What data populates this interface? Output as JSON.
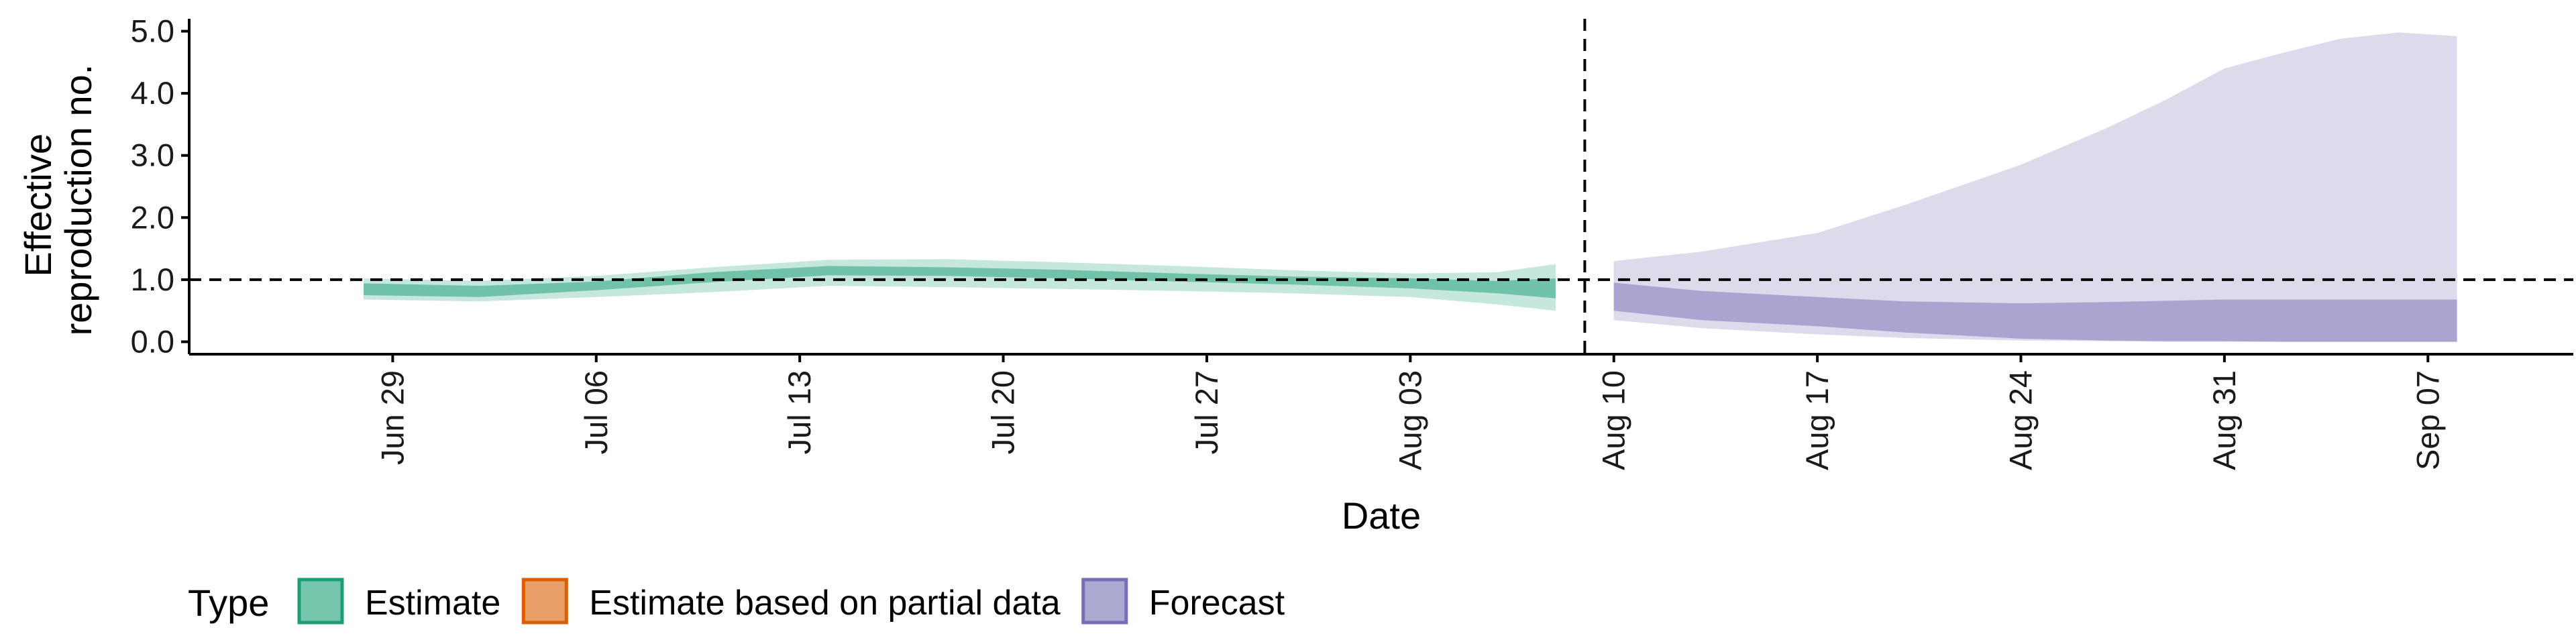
{
  "chart_data": {
    "type": "area",
    "ylabel_lines": [
      "Effective",
      "reproduction no."
    ],
    "xlabel": "Date",
    "ylim": [
      -0.2,
      5.2
    ],
    "yticks": [
      0.0,
      1.0,
      2.0,
      3.0,
      4.0,
      5.0
    ],
    "ytick_labels": [
      "0.0",
      "1.0",
      "2.0",
      "3.0",
      "4.0",
      "5.0"
    ],
    "xlim": [
      "2020-06-22",
      "2020-09-12"
    ],
    "xticks": [
      "2020-06-29",
      "2020-07-06",
      "2020-07-13",
      "2020-07-20",
      "2020-07-27",
      "2020-08-03",
      "2020-08-10",
      "2020-08-17",
      "2020-08-24",
      "2020-08-31",
      "2020-09-07"
    ],
    "xtick_labels": [
      "Jun 29",
      "Jul 06",
      "Jul 13",
      "Jul 20",
      "Jul 27",
      "Aug 03",
      "Aug 10",
      "Aug 17",
      "Aug 24",
      "Aug 31",
      "Sep 07"
    ],
    "reference_hline": 1.0,
    "divider_date": "2020-08-09",
    "series": [
      {
        "name": "Estimate",
        "color": "#1b9e77",
        "x": [
          "2020-06-28",
          "2020-07-02",
          "2020-07-06",
          "2020-07-10",
          "2020-07-14",
          "2020-07-18",
          "2020-07-22",
          "2020-07-26",
          "2020-07-30",
          "2020-08-03",
          "2020-08-06",
          "2020-08-08"
        ],
        "outer_lower": [
          0.68,
          0.65,
          0.72,
          0.8,
          0.9,
          0.88,
          0.85,
          0.82,
          0.78,
          0.72,
          0.6,
          0.5
        ],
        "outer_upper": [
          1.02,
          0.98,
          1.06,
          1.2,
          1.32,
          1.33,
          1.28,
          1.22,
          1.15,
          1.1,
          1.12,
          1.25
        ],
        "inner_lower": [
          0.75,
          0.72,
          0.83,
          0.96,
          1.07,
          1.06,
          1.02,
          0.97,
          0.92,
          0.86,
          0.78,
          0.7
        ],
        "inner_upper": [
          0.94,
          0.9,
          0.97,
          1.12,
          1.22,
          1.2,
          1.16,
          1.1,
          1.05,
          1.02,
          0.98,
          1.02
        ]
      },
      {
        "name": "Estimate based on partial data",
        "color": "#d95f02",
        "x": [],
        "outer_lower": [],
        "outer_upper": [],
        "inner_lower": [],
        "inner_upper": []
      },
      {
        "name": "Forecast",
        "color": "#7570b3",
        "x": [
          "2020-08-10",
          "2020-08-13",
          "2020-08-17",
          "2020-08-20",
          "2020-08-24",
          "2020-08-27",
          "2020-08-29",
          "2020-08-31",
          "2020-09-02",
          "2020-09-04",
          "2020-09-06",
          "2020-09-08"
        ],
        "outer_lower": [
          0.35,
          0.22,
          0.12,
          0.06,
          0.02,
          0.01,
          0.0,
          0.0,
          0.0,
          0.0,
          0.0,
          0.0
        ],
        "outer_upper": [
          1.3,
          1.45,
          1.75,
          2.2,
          2.85,
          3.45,
          3.9,
          4.4,
          4.65,
          4.88,
          4.98,
          4.92
        ],
        "inner_lower": [
          0.5,
          0.35,
          0.25,
          0.15,
          0.05,
          0.02,
          0.01,
          0.01,
          0.0,
          0.0,
          0.0,
          0.0
        ],
        "inner_upper": [
          0.95,
          0.82,
          0.72,
          0.65,
          0.62,
          0.64,
          0.66,
          0.68,
          0.68,
          0.68,
          0.68,
          0.68
        ]
      }
    ],
    "legend": {
      "title": "Type",
      "position": "bottom-left",
      "entries": [
        {
          "label": "Estimate",
          "color": "#1b9e77"
        },
        {
          "label": "Estimate based on partial data",
          "color": "#d95f02"
        },
        {
          "label": "Forecast",
          "color": "#7570b3"
        }
      ]
    }
  }
}
